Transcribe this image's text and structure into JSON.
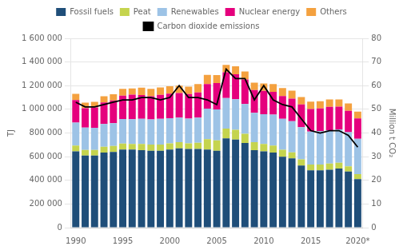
{
  "chart_data": {
    "type": "bar",
    "stacked": true,
    "grid": true,
    "ylabel": "TJ",
    "y2label": "Million t CO₂",
    "categories": [
      "1990",
      null,
      null,
      null,
      null,
      "1995",
      null,
      null,
      null,
      null,
      "2000",
      null,
      null,
      null,
      null,
      "2005",
      null,
      null,
      null,
      null,
      "2010",
      null,
      null,
      null,
      null,
      "2015",
      null,
      null,
      null,
      null,
      "2020*"
    ],
    "series": [
      {
        "name": "Fossil fuels",
        "color": "#1f4e79",
        "values": [
          645000,
          610000,
          610000,
          635000,
          640000,
          660000,
          660000,
          655000,
          650000,
          650000,
          660000,
          670000,
          665000,
          665000,
          660000,
          650000,
          755000,
          745000,
          715000,
          655000,
          645000,
          635000,
          600000,
          585000,
          525000,
          485000,
          485000,
          490000,
          500000,
          475000,
          410000
        ]
      },
      {
        "name": "Peat",
        "color": "#c5d44e",
        "values": [
          48000,
          46000,
          46000,
          48000,
          50000,
          50000,
          48000,
          52000,
          52000,
          52000,
          52000,
          52000,
          48000,
          52000,
          88000,
          88000,
          82000,
          82000,
          78000,
          68000,
          62000,
          58000,
          58000,
          52000,
          52000,
          48000,
          48000,
          52000,
          48000,
          43000,
          43000
        ]
      },
      {
        "name": "Renewables",
        "color": "#9dc3e6",
        "values": [
          195000,
          190000,
          188000,
          193000,
          193000,
          208000,
          208000,
          212000,
          212000,
          218000,
          213000,
          208000,
          208000,
          213000,
          258000,
          262000,
          258000,
          258000,
          252000,
          248000,
          252000,
          262000,
          262000,
          262000,
          272000,
          278000,
          282000,
          282000,
          282000,
          288000,
          298000
        ]
      },
      {
        "name": "Nuclear energy",
        "color": "#e5007d",
        "values": [
          190000,
          163000,
          172000,
          182000,
          192000,
          198000,
          208000,
          202000,
          197000,
          202000,
          208000,
          208000,
          208000,
          212000,
          208000,
          222000,
          218000,
          212000,
          208000,
          192000,
          197000,
          192000,
          192000,
          192000,
          192000,
          192000,
          192000,
          197000,
          192000,
          182000,
          172000
        ]
      },
      {
        "name": "Others",
        "color": "#f4a13f",
        "values": [
          52000,
          48000,
          48000,
          52000,
          52000,
          57000,
          52000,
          62000,
          62000,
          62000,
          62000,
          62000,
          62000,
          72000,
          77000,
          67000,
          62000,
          67000,
          67000,
          62000,
          62000,
          67000,
          67000,
          67000,
          62000,
          62000,
          62000,
          62000,
          62000,
          62000,
          57000
        ]
      },
      {
        "name": "Carbon dioxide emissions",
        "type": "line",
        "axis": "y2",
        "color": "#000000",
        "values": [
          53,
          51,
          51,
          52,
          53,
          54,
          54,
          55,
          55,
          54,
          55,
          60,
          55,
          55,
          54,
          52,
          67,
          63,
          63,
          54,
          60,
          54,
          52,
          51,
          46,
          41,
          40,
          41,
          41,
          39,
          34
        ]
      }
    ],
    "ylim": [
      0,
      1600000
    ],
    "yticks": [
      0,
      {
        "value": 200000,
        "label": "200 000"
      },
      {
        "value": 400000,
        "label": "400 000"
      },
      {
        "value": 600000,
        "label": "600 000"
      },
      {
        "value": 800000,
        "label": "800 000"
      },
      {
        "value": 1000000,
        "label": "1 000 000"
      },
      {
        "value": 1200000,
        "label": "1 200 000"
      },
      {
        "value": 1400000,
        "label": "1 400 000"
      },
      {
        "value": 1600000,
        "label": "1 600 000"
      }
    ],
    "y2lim": [
      0,
      80
    ],
    "y2ticks": [
      0,
      10,
      20,
      30,
      40,
      50,
      60,
      70,
      80
    ]
  }
}
